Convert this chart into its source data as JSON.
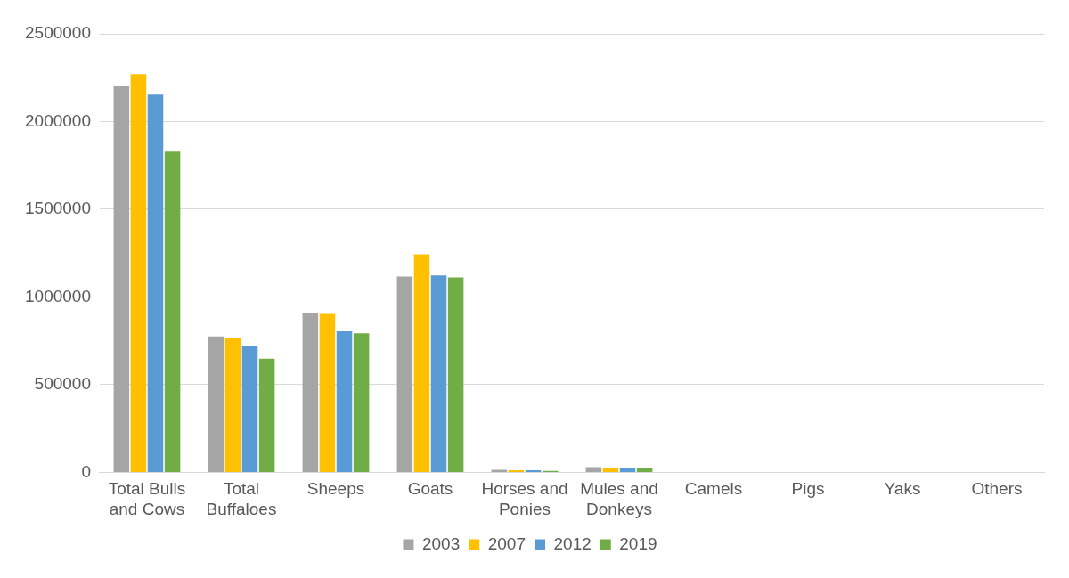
{
  "chart_data": {
    "type": "bar",
    "categories": [
      "Total Bulls and Cows",
      "Total Buffaloes",
      "Sheeps",
      "Goats",
      "Horses and Ponies",
      "Mules and Donkeys",
      "Camels",
      "Pigs",
      "Yaks",
      "Others"
    ],
    "series": [
      {
        "name": "2003",
        "color": "#a5a5a5",
        "values": [
          2200000,
          775000,
          908000,
          1117000,
          15000,
          30000,
          0,
          0,
          0,
          0
        ]
      },
      {
        "name": "2007",
        "color": "#ffc000",
        "values": [
          2270000,
          764000,
          903000,
          1244000,
          12000,
          25000,
          0,
          0,
          0,
          0
        ]
      },
      {
        "name": "2012",
        "color": "#5b9bd5",
        "values": [
          2153000,
          718000,
          804000,
          1123000,
          12000,
          28000,
          0,
          0,
          0,
          0
        ]
      },
      {
        "name": "2019",
        "color": "#70ad47",
        "values": [
          1829000,
          648000,
          793000,
          1111000,
          8000,
          22000,
          0,
          0,
          0,
          0
        ]
      }
    ],
    "ylim": [
      0,
      2500000
    ],
    "yticks": [
      0,
      500000,
      1000000,
      1500000,
      2000000,
      2500000
    ],
    "grid": "y",
    "legend": "bottom"
  }
}
